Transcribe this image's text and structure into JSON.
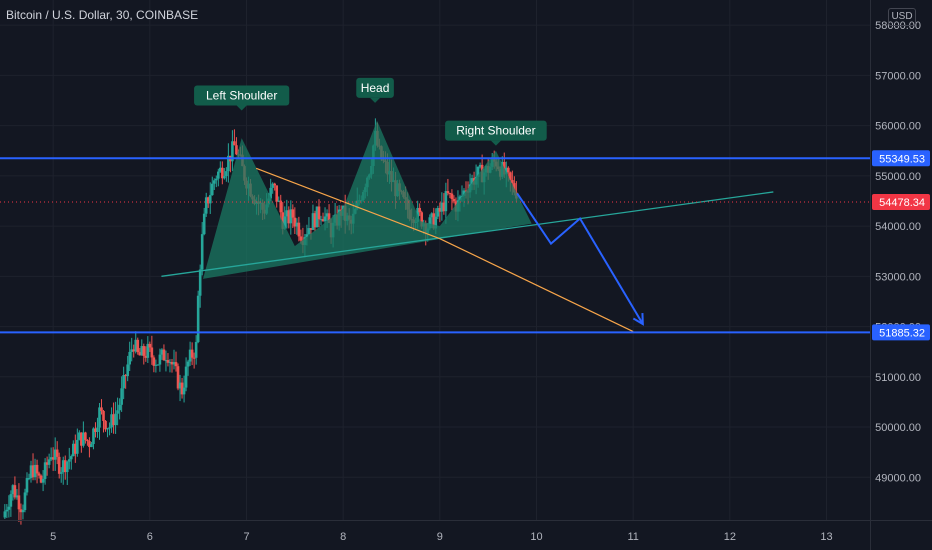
{
  "header": {
    "title": "Bitcoin / U.S. Dollar, 30, COINBASE",
    "currency": "USD"
  },
  "colors": {
    "background": "#131722",
    "grid": "#1e222d",
    "bull": "#26a69a",
    "bear": "#ef5350",
    "level": "#2962ff",
    "last": "#f23645",
    "orange": "#f7a54a",
    "teal": "#26a69a",
    "pattern": "#1b7a63"
  },
  "chart_data": {
    "type": "candlestick",
    "title": "Bitcoin / U.S. Dollar, 30, COINBASE",
    "x_ticks": [
      "5",
      "6",
      "7",
      "8",
      "9",
      "10",
      "11",
      "12",
      "13"
    ],
    "x_range": [
      4.45,
      13.45
    ],
    "y_range": [
      48150,
      58500
    ],
    "y_ticks": [
      49000,
      50000,
      51000,
      52000,
      53000,
      54000,
      55000,
      56000,
      57000,
      58000
    ],
    "y_tick_labels": [
      "49000.00",
      "50000.00",
      "51000.00",
      "52000.00",
      "53000.00",
      "54000.00",
      "55000.00",
      "56000.00",
      "57000.00",
      "58000.00"
    ],
    "price_levels": [
      {
        "label": "55349.53",
        "value": 55349.53,
        "kind": "level"
      },
      {
        "label": "51885.32",
        "value": 51885.32,
        "kind": "level"
      },
      {
        "label": "54478.34",
        "value": 54478.34,
        "kind": "last"
      }
    ],
    "candle_path": [
      [
        4.5,
        48200
      ],
      [
        4.6,
        48800
      ],
      [
        4.7,
        48400
      ],
      [
        4.8,
        49200
      ],
      [
        4.9,
        48900
      ],
      [
        5.0,
        49500
      ],
      [
        5.1,
        49200
      ],
      [
        5.2,
        49400
      ],
      [
        5.3,
        49800
      ],
      [
        5.4,
        49700
      ],
      [
        5.5,
        50300
      ],
      [
        5.6,
        50000
      ],
      [
        5.7,
        50400
      ],
      [
        5.8,
        51300
      ],
      [
        5.85,
        51700
      ],
      [
        5.9,
        51400
      ],
      [
        6.0,
        51500
      ],
      [
        6.1,
        51300
      ],
      [
        6.2,
        51500
      ],
      [
        6.3,
        51000
      ],
      [
        6.35,
        50700
      ],
      [
        6.42,
        51300
      ],
      [
        6.5,
        51600
      ],
      [
        6.53,
        53000
      ],
      [
        6.56,
        53700
      ],
      [
        6.6,
        54400
      ],
      [
        6.7,
        55000
      ],
      [
        6.8,
        55200
      ],
      [
        6.9,
        55600
      ],
      [
        7.0,
        55000
      ],
      [
        7.1,
        54600
      ],
      [
        7.2,
        54300
      ],
      [
        7.3,
        54800
      ],
      [
        7.4,
        54100
      ],
      [
        7.5,
        54200
      ],
      [
        7.6,
        53800
      ],
      [
        7.7,
        54100
      ],
      [
        7.8,
        54300
      ],
      [
        7.9,
        53900
      ],
      [
        8.0,
        54300
      ],
      [
        8.1,
        54000
      ],
      [
        8.2,
        54600
      ],
      [
        8.3,
        55200
      ],
      [
        8.35,
        55800
      ],
      [
        8.4,
        55400
      ],
      [
        8.5,
        55000
      ],
      [
        8.6,
        54600
      ],
      [
        8.7,
        54300
      ],
      [
        8.8,
        54200
      ],
      [
        8.9,
        54000
      ],
      [
        9.0,
        54200
      ],
      [
        9.1,
        54600
      ],
      [
        9.2,
        54400
      ],
      [
        9.3,
        54800
      ],
      [
        9.4,
        55000
      ],
      [
        9.5,
        55100
      ],
      [
        9.6,
        55300
      ],
      [
        9.7,
        55000
      ],
      [
        9.8,
        54700
      ]
    ],
    "annotations": [
      {
        "text": "Left Shoulder",
        "x": 6.95,
        "y": 56600
      },
      {
        "text": "Head",
        "x": 8.33,
        "y": 56750
      },
      {
        "text": "Right Shoulder",
        "x": 9.58,
        "y": 55900
      }
    ],
    "pattern_polygon": [
      [
        6.55,
        52950
      ],
      [
        6.95,
        55750
      ],
      [
        7.5,
        53600
      ],
      [
        8.0,
        54350
      ],
      [
        8.35,
        56100
      ],
      [
        8.8,
        54100
      ],
      [
        9.0,
        54000
      ],
      [
        9.58,
        55500
      ],
      [
        9.95,
        54050
      ]
    ],
    "neckline": {
      "from": [
        6.12,
        53000
      ],
      "to": [
        12.45,
        54680
      ]
    },
    "orange_lines": [
      {
        "from": [
          7.1,
          55150
        ],
        "to": [
          9.0,
          53750
        ]
      },
      {
        "from": [
          9.0,
          53750
        ],
        "to": [
          11.0,
          51900
        ]
      }
    ],
    "projection_path": [
      [
        9.8,
        54650
      ],
      [
        10.15,
        53650
      ],
      [
        10.45,
        54150
      ],
      [
        11.1,
        52050
      ]
    ]
  }
}
